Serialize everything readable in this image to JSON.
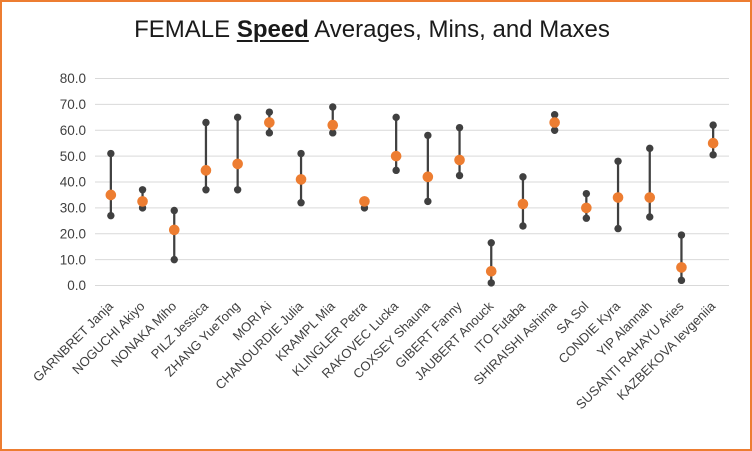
{
  "window": {
    "border_color": "#ED7D31",
    "background": "#FFFFFF"
  },
  "title": {
    "full": "FEMALE Speed Averages, Mins, and Maxes",
    "prefix": "FEMALE ",
    "emphasis": "Speed",
    "suffix": " Averages, Mins, and Maxes"
  },
  "colors": {
    "accent_orange": "#ED7D31",
    "marker_dark": "#404040",
    "gridline": "#D9D9D9",
    "axis_text": "#404040",
    "title_text": "#1A1A1A"
  },
  "chart_data": {
    "type": "scatter",
    "subtype": "min-avg-max vertical dot plot (stock-style)",
    "title": "FEMALE Speed Averages, Mins, and Maxes",
    "xlabel": "",
    "ylabel": "",
    "ylim": [
      0,
      80
    ],
    "grid": true,
    "legend": "none",
    "x_label_rotation_deg": 45,
    "y_ticks": [
      "80.0",
      "70.0",
      "60.0",
      "50.0",
      "40.0",
      "30.0",
      "20.0",
      "10.0",
      "0.0"
    ],
    "categories": [
      "GARNBRET Janja",
      "NOGUCHI Akiyo",
      "NONAKA Miho",
      "PILZ Jessica",
      "ZHANG YueTong",
      "MORI Ai",
      "CHANOURDIE Julia",
      "KRAMPL Mia",
      "KLINGLER Petra",
      "RAKOVEC Lucka",
      "COXSEY Shauna",
      "GIBERT Fanny",
      "JAUBERT Anouck",
      "ITO Futaba",
      "SHIRAISHI Ashima",
      "SA Sol",
      "CONDIE Kyra",
      "YIP Alannah",
      "SUSANTI RAHAYU Aries",
      "KAZBEKOVA Ievgeniia"
    ],
    "series": [
      {
        "name": "Average",
        "marker": "large-orange-circle",
        "color": "#ED7D31",
        "values": [
          35,
          32.5,
          21.5,
          44.5,
          47,
          63,
          41,
          62,
          32.5,
          50,
          42,
          48.5,
          5.5,
          31.5,
          63,
          30,
          34,
          34,
          7,
          55
        ]
      },
      {
        "name": "Min",
        "marker": "small-dark-circle",
        "color": "#404040",
        "values": [
          27,
          30,
          10,
          37,
          37,
          59,
          32,
          59,
          30,
          44.5,
          32.5,
          42.5,
          1,
          23,
          60,
          26,
          22,
          26.5,
          2,
          50.5
        ]
      },
      {
        "name": "Max",
        "marker": "small-dark-circle",
        "color": "#404040",
        "values": [
          51,
          37,
          29,
          63,
          65,
          67,
          51,
          69,
          33,
          65,
          58,
          61,
          16.5,
          42,
          66,
          35.5,
          48,
          53,
          19.5,
          62
        ]
      }
    ]
  }
}
